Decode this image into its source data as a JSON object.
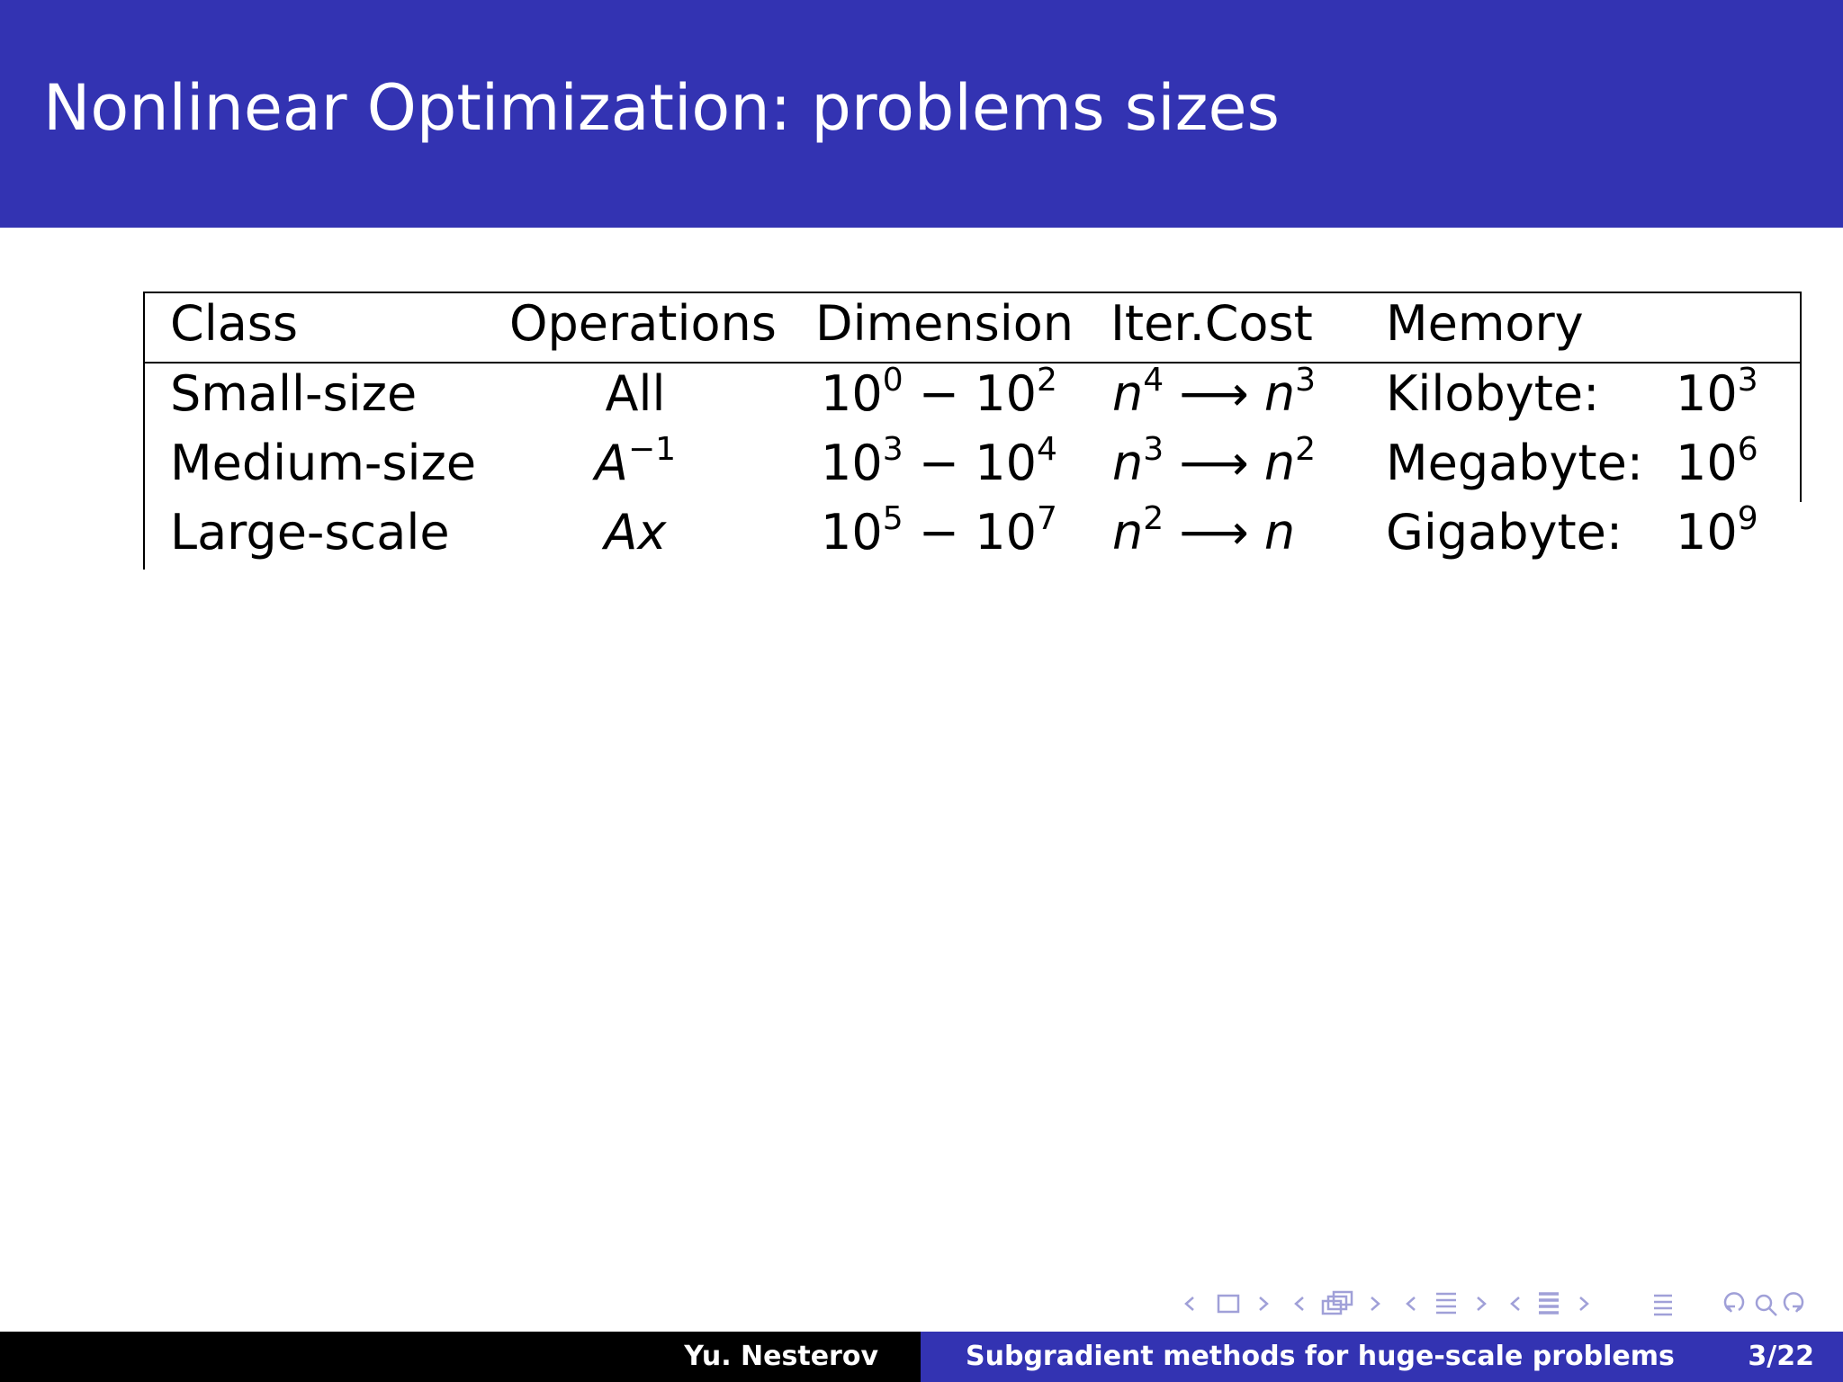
{
  "slide": {
    "title": "Nonlinear Optimization: problems sizes"
  },
  "table": {
    "headers": [
      "Class",
      "Operations",
      "Dimension",
      "Iter.Cost",
      "Memory"
    ],
    "rows": [
      {
        "class": "Small-size",
        "operations": "All",
        "dimension": {
          "from_base": "10",
          "from_exp": "0",
          "to_base": "10",
          "to_exp": "2"
        },
        "iter_cost": {
          "from_var": "n",
          "from_exp": "4",
          "to_var": "n",
          "to_exp": "3"
        },
        "memory_label": "Kilobyte:",
        "memory_value": {
          "base": "10",
          "exp": "3"
        }
      },
      {
        "class": "Medium-size",
        "operations": {
          "var": "A",
          "exp": "−1"
        },
        "dimension": {
          "from_base": "10",
          "from_exp": "3",
          "to_base": "10",
          "to_exp": "4"
        },
        "iter_cost": {
          "from_var": "n",
          "from_exp": "3",
          "to_var": "n",
          "to_exp": "2"
        },
        "memory_label": "Megabyte:",
        "memory_value": {
          "base": "10",
          "exp": "6"
        }
      },
      {
        "class": "Large-scale",
        "operations": {
          "var": "Ax"
        },
        "dimension": {
          "from_base": "10",
          "from_exp": "5",
          "to_base": "10",
          "to_exp": "7"
        },
        "iter_cost": {
          "from_var": "n",
          "from_exp": "2",
          "to_var": "n",
          "to_exp": ""
        },
        "memory_label": "Gigabyte:",
        "memory_value": {
          "base": "10",
          "exp": "9"
        }
      }
    ]
  },
  "symbols": {
    "minus": "−",
    "arrow": "⟶"
  },
  "navigation": {
    "icons": [
      "nav-frame-icon",
      "nav-subsection-icon",
      "nav-section-icon",
      "nav-subsubsection-icon",
      "nav-align-icon",
      "nav-search-icon"
    ],
    "color": "#a0a0d8"
  },
  "footer": {
    "author": "Yu. Nesterov",
    "talk_title": "Subgradient methods for huge-scale problems",
    "page": "3/22"
  },
  "colors": {
    "header_bg": "#3333b2",
    "footer_left_bg": "#000000",
    "footer_right_bg": "#3333b2"
  }
}
